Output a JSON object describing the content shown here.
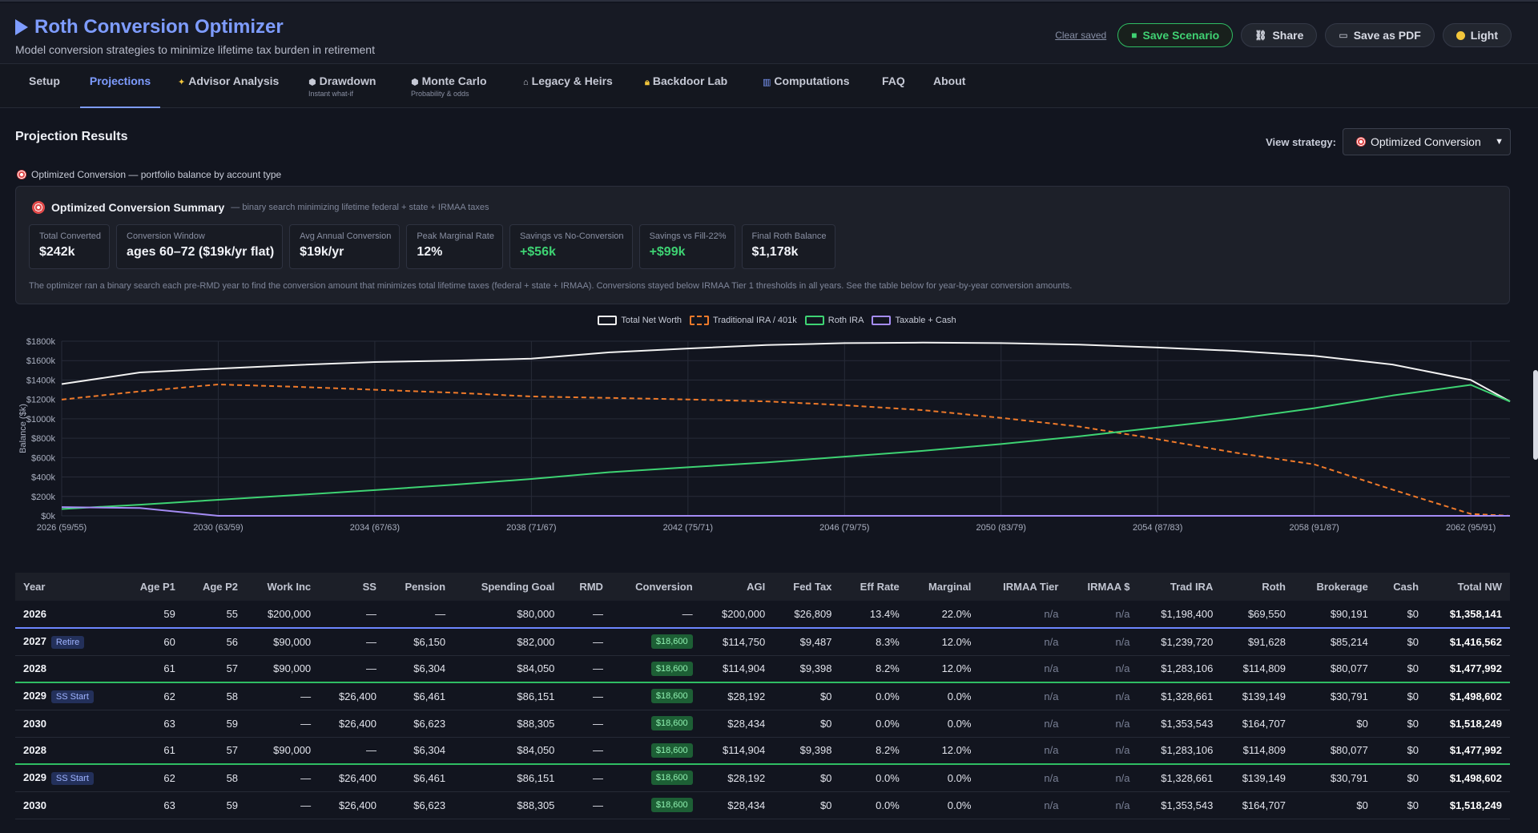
{
  "header": {
    "title": "Roth Conversion Optimizer",
    "subtitle": "Model conversion strategies to minimize lifetime tax burden in retirement",
    "clear_saved": "Clear saved",
    "save_scenario": "Save Scenario",
    "share": "Share",
    "save_pdf": "Save as PDF",
    "theme": "Light"
  },
  "tabs": [
    {
      "label": "Setup",
      "sub": ""
    },
    {
      "label": "Projections",
      "sub": ""
    },
    {
      "label": "Advisor Analysis",
      "sub": ""
    },
    {
      "label": "Drawdown",
      "sub": "Instant what-if"
    },
    {
      "label": "Monte Carlo",
      "sub": "Probability & odds"
    },
    {
      "label": "Legacy & Heirs",
      "sub": ""
    },
    {
      "label": "Backdoor Lab",
      "sub": ""
    },
    {
      "label": "Computations",
      "sub": ""
    },
    {
      "label": "FAQ",
      "sub": ""
    },
    {
      "label": "About",
      "sub": ""
    }
  ],
  "section": {
    "title": "Projection Results",
    "view_label": "View strategy:",
    "view_value": "Optimized Conversion",
    "caption": "Optimized Conversion — portfolio balance by account type"
  },
  "summary": {
    "title": "Optimized Conversion Summary",
    "desc": "— binary search minimizing lifetime federal + state + IRMAA taxes",
    "stats": [
      {
        "label": "Total Converted",
        "value": "$242k"
      },
      {
        "label": "Conversion Window",
        "value": "ages 60–72 ($19k/yr flat)"
      },
      {
        "label": "Avg Annual Conversion",
        "value": "$19k/yr"
      },
      {
        "label": "Peak Marginal Rate",
        "value": "12%"
      },
      {
        "label": "Savings vs No-Conversion",
        "value": "+$56k"
      },
      {
        "label": "Savings vs Fill-22%",
        "value": "+$99k"
      },
      {
        "label": "Final Roth Balance",
        "value": "$1,178k"
      }
    ],
    "note": "The optimizer ran a binary search each pre-RMD year to find the conversion amount that minimizes total lifetime taxes (federal + state + IRMAA). Conversions stayed below IRMAA Tier 1 thresholds in all years. See the table below for year-by-year conversion amounts."
  },
  "chart_data": {
    "type": "line",
    "ylabel": "Balance ($k)",
    "y_ticks": [
      "$0k",
      "$200k",
      "$400k",
      "$600k",
      "$800k",
      "$1000k",
      "$1200k",
      "$1400k",
      "$1600k",
      "$1800k"
    ],
    "ylim": [
      0,
      1800
    ],
    "x_ticks": [
      "2026 (59/55)",
      "2030 (63/59)",
      "2034 (67/63)",
      "2038 (71/67)",
      "2042 (75/71)",
      "2046 (79/75)",
      "2050 (83/79)",
      "2054 (87/83)",
      "2058 (91/87)",
      "2062 (95/91)"
    ],
    "x": [
      2026,
      2028,
      2030,
      2032,
      2034,
      2036,
      2038,
      2040,
      2042,
      2044,
      2046,
      2048,
      2050,
      2052,
      2054,
      2056,
      2058,
      2060,
      2062,
      2064
    ],
    "xlim": [
      2026,
      2063
    ],
    "legend_position": "top",
    "grid": true,
    "series": [
      {
        "name": "Total Net Worth",
        "color": "#f2f2f2",
        "dash": false,
        "values": [
          1358,
          1478,
          1518,
          1555,
          1585,
          1600,
          1620,
          1685,
          1725,
          1760,
          1780,
          1785,
          1780,
          1765,
          1735,
          1700,
          1650,
          1560,
          1400,
          1180
        ]
      },
      {
        "name": "Traditional IRA / 401k",
        "color": "#f07a2a",
        "dash": true,
        "values": [
          1198,
          1283,
          1354,
          1330,
          1300,
          1270,
          1230,
          1215,
          1200,
          1180,
          1140,
          1090,
          1010,
          920,
          790,
          650,
          530,
          270,
          20,
          0
        ]
      },
      {
        "name": "Roth IRA",
        "color": "#3ed373",
        "dash": false,
        "values": [
          70,
          115,
          165,
          215,
          265,
          320,
          380,
          450,
          500,
          550,
          610,
          670,
          740,
          820,
          910,
          1000,
          1110,
          1240,
          1350,
          1178
        ]
      },
      {
        "name": "Taxable + Cash",
        "color": "#a58cf5",
        "dash": false,
        "values": [
          90,
          80,
          0,
          0,
          0,
          0,
          0,
          0,
          0,
          0,
          0,
          0,
          0,
          0,
          0,
          0,
          0,
          0,
          0,
          0
        ]
      }
    ]
  },
  "table": {
    "headers": [
      "Year",
      "Age P1",
      "Age P2",
      "Work Inc",
      "SS",
      "Pension",
      "Spending Goal",
      "RMD",
      "Conversion",
      "AGI",
      "Fed Tax",
      "Eff Rate",
      "Marginal",
      "IRMAA Tier",
      "IRMAA $",
      "Trad IRA",
      "Roth",
      "Brokerage",
      "Cash",
      "Total NW"
    ],
    "rows": [
      {
        "year": "2026",
        "badge": "",
        "marker": "",
        "cells": [
          "59",
          "55",
          "$200,000",
          "—",
          "—",
          "$80,000",
          "—",
          "—",
          "$200,000",
          "$26,809",
          "13.4%",
          "22.0%",
          "n/a",
          "n/a",
          "$1,198,400",
          "$69,550",
          "$90,191",
          "$0",
          "$1,358,141"
        ]
      },
      {
        "year": "2027",
        "badge": "Retire",
        "marker": "blue",
        "cells": [
          "60",
          "56",
          "$90,000",
          "—",
          "$6,150",
          "$82,000",
          "—",
          "$18,600",
          "$114,750",
          "$9,487",
          "8.3%",
          "12.0%",
          "n/a",
          "n/a",
          "$1,239,720",
          "$91,628",
          "$85,214",
          "$0",
          "$1,416,562"
        ]
      },
      {
        "year": "2028",
        "badge": "",
        "marker": "",
        "cells": [
          "61",
          "57",
          "$90,000",
          "—",
          "$6,304",
          "$84,050",
          "—",
          "$18,600",
          "$114,904",
          "$9,398",
          "8.2%",
          "12.0%",
          "n/a",
          "n/a",
          "$1,283,106",
          "$114,809",
          "$80,077",
          "$0",
          "$1,477,992"
        ]
      },
      {
        "year": "2029",
        "badge": "SS Start",
        "marker": "green",
        "cells": [
          "62",
          "58",
          "—",
          "$26,400",
          "$6,461",
          "$86,151",
          "—",
          "$18,600",
          "$28,192",
          "$0",
          "0.0%",
          "0.0%",
          "n/a",
          "n/a",
          "$1,328,661",
          "$139,149",
          "$30,791",
          "$0",
          "$1,498,602"
        ]
      },
      {
        "year": "2030",
        "badge": "",
        "marker": "",
        "cells": [
          "63",
          "59",
          "—",
          "$26,400",
          "$6,623",
          "$88,305",
          "—",
          "$18,600",
          "$28,434",
          "$0",
          "0.0%",
          "0.0%",
          "n/a",
          "n/a",
          "$1,353,543",
          "$164,707",
          "$0",
          "$0",
          "$1,518,249"
        ]
      },
      {
        "year": "2028",
        "badge": "",
        "marker": "",
        "cells": [
          "61",
          "57",
          "$90,000",
          "—",
          "$6,304",
          "$84,050",
          "—",
          "$18,600",
          "$114,904",
          "$9,398",
          "8.2%",
          "12.0%",
          "n/a",
          "n/a",
          "$1,283,106",
          "$114,809",
          "$80,077",
          "$0",
          "$1,477,992"
        ]
      },
      {
        "year": "2029",
        "badge": "SS Start",
        "marker": "green",
        "cells": [
          "62",
          "58",
          "—",
          "$26,400",
          "$6,461",
          "$86,151",
          "—",
          "$18,600",
          "$28,192",
          "$0",
          "0.0%",
          "0.0%",
          "n/a",
          "n/a",
          "$1,328,661",
          "$139,149",
          "$30,791",
          "$0",
          "$1,498,602"
        ]
      },
      {
        "year": "2030",
        "badge": "",
        "marker": "",
        "cells": [
          "63",
          "59",
          "—",
          "$26,400",
          "$6,623",
          "$88,305",
          "—",
          "$18,600",
          "$28,434",
          "$0",
          "0.0%",
          "0.0%",
          "n/a",
          "n/a",
          "$1,353,543",
          "$164,707",
          "$0",
          "$0",
          "$1,518,249"
        ]
      }
    ]
  }
}
